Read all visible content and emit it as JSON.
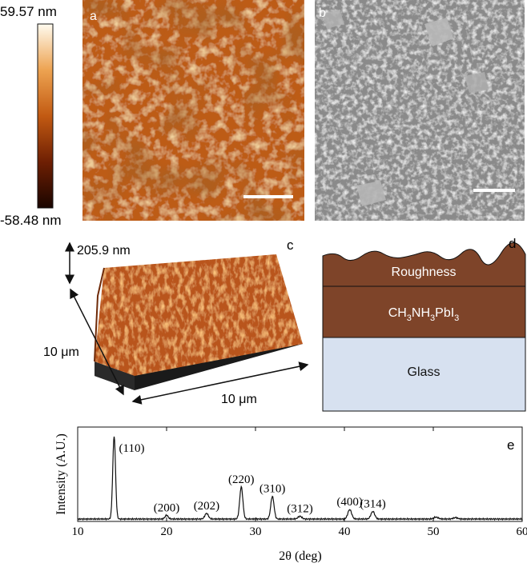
{
  "colorbar": {
    "max_label": "59.57 nm",
    "min_label": "-58.48 nm"
  },
  "panel_a": {
    "letter": "a"
  },
  "panel_b": {
    "letter": "b"
  },
  "panel_c": {
    "letter": "c",
    "height_label": "205.9 nm",
    "side_label": "10 μm",
    "bottom_label": "10 μm"
  },
  "panel_d": {
    "letter": "d",
    "layers": {
      "roughness": "Roughness",
      "perovskite_main": "CH",
      "perovskite_sub1": "3",
      "perovskite_mid": "NH",
      "perovskite_sub2": "3",
      "perovskite_end": "PbI",
      "perovskite_sub3": "3",
      "glass": "Glass"
    },
    "colors": {
      "film": "#7e4429",
      "glass": "#d7e1f0"
    }
  },
  "panel_e": {
    "letter": "e"
  },
  "chart_data": {
    "type": "line",
    "xlabel": "2θ (deg)",
    "ylabel": "Intensity (A.U.)",
    "xlim": [
      10,
      60
    ],
    "xticks": [
      10,
      20,
      30,
      40,
      50,
      60
    ],
    "peaks": [
      {
        "x": 14.1,
        "height": 0.88,
        "width": 0.22,
        "label": "(110)"
      },
      {
        "x": 20.0,
        "height": 0.04,
        "width": 0.25,
        "label": "(200)"
      },
      {
        "x": 24.5,
        "height": 0.06,
        "width": 0.28,
        "label": "(202)"
      },
      {
        "x": 28.4,
        "height": 0.34,
        "width": 0.25,
        "label": "(220)"
      },
      {
        "x": 31.9,
        "height": 0.24,
        "width": 0.26,
        "label": "(310)"
      },
      {
        "x": 35.0,
        "height": 0.03,
        "width": 0.3,
        "label": "(312)"
      },
      {
        "x": 40.6,
        "height": 0.1,
        "width": 0.3,
        "label": "(400)"
      },
      {
        "x": 43.2,
        "height": 0.08,
        "width": 0.3,
        "label": "(314)"
      },
      {
        "x": 50.3,
        "height": 0.02,
        "width": 0.35,
        "label": ""
      },
      {
        "x": 52.5,
        "height": 0.015,
        "width": 0.35,
        "label": ""
      }
    ]
  }
}
